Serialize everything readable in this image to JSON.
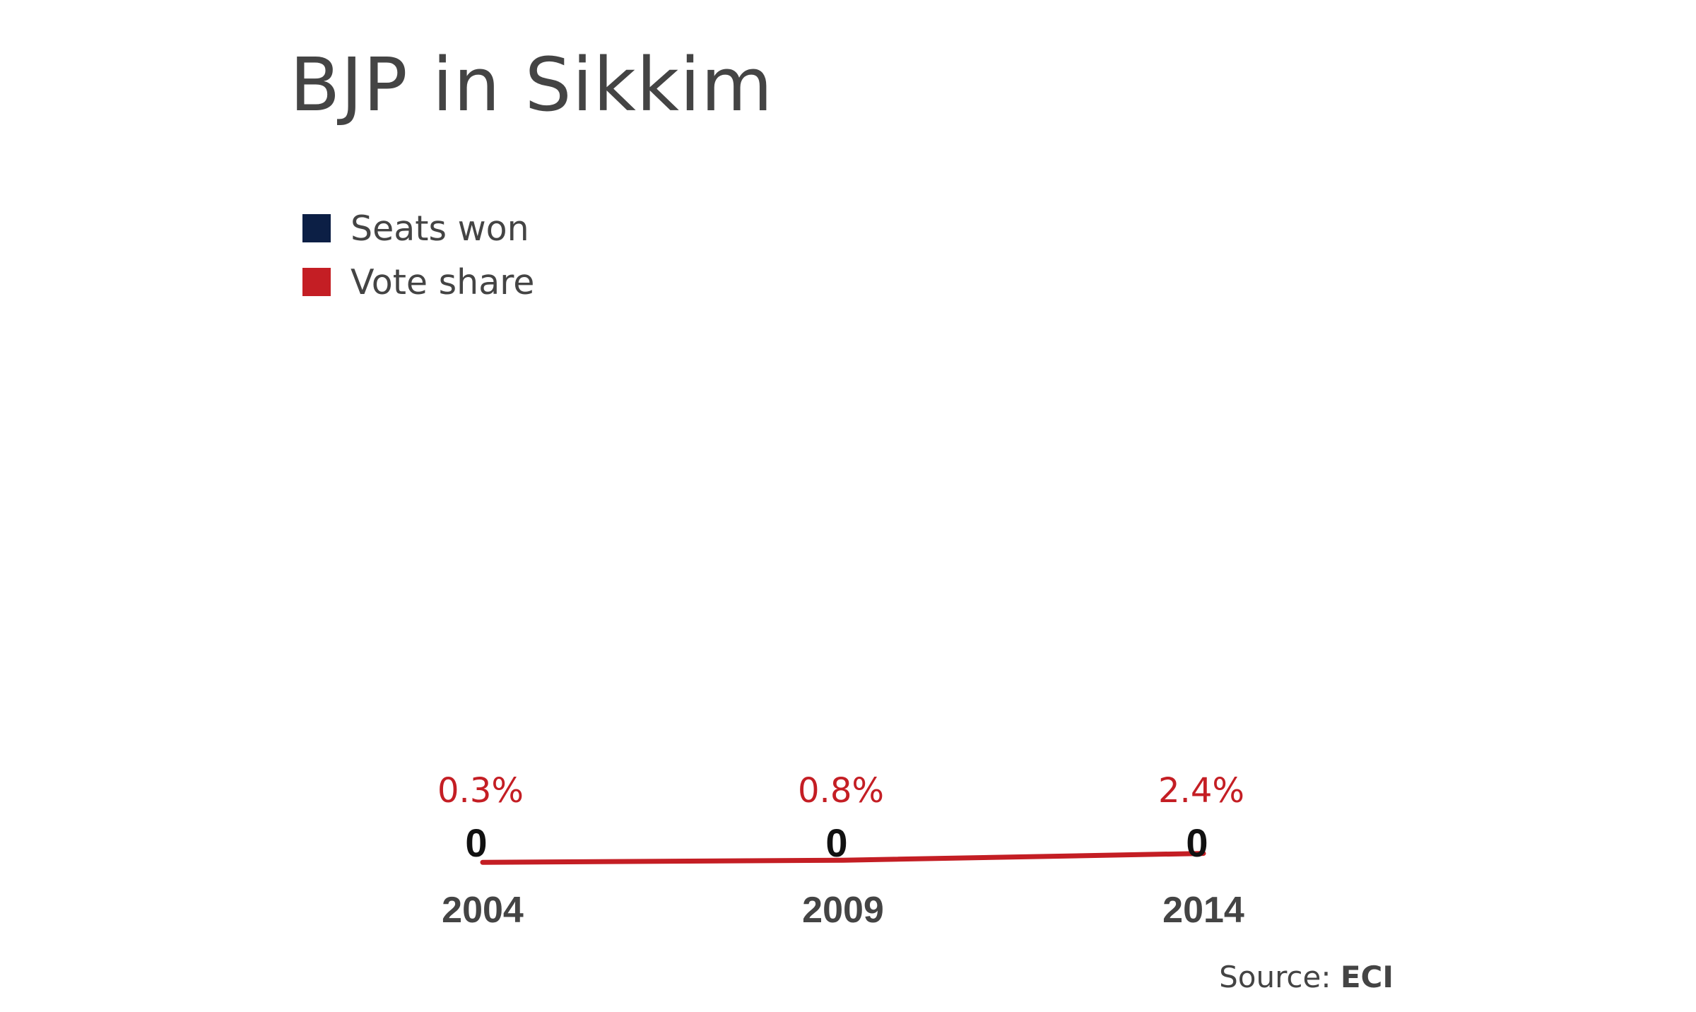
{
  "title": "BJP in Sikkim",
  "legend": [
    {
      "label": "Seats won",
      "color": "#0c1f45"
    },
    {
      "label": "Vote share",
      "color": "#c41e24"
    }
  ],
  "source": {
    "prefix": "Source: ",
    "value": "ECI"
  },
  "chart_data": {
    "type": "bar",
    "title": "BJP in Sikkim",
    "categories": [
      "2004",
      "2009",
      "2014"
    ],
    "series": [
      {
        "name": "Seats won",
        "type": "bar",
        "values": [
          0,
          0,
          0
        ],
        "labels": [
          "0",
          "0",
          "0"
        ],
        "color": "#0c1f45"
      },
      {
        "name": "Vote share",
        "type": "line",
        "values": [
          0.3,
          0.8,
          2.4
        ],
        "labels": [
          "0.3%",
          "0.8%",
          "2.4%"
        ],
        "unit": "%",
        "color": "#c41e24"
      }
    ],
    "xlabel": "",
    "ylabel": "",
    "grid": false,
    "legend_position": "top-left"
  }
}
